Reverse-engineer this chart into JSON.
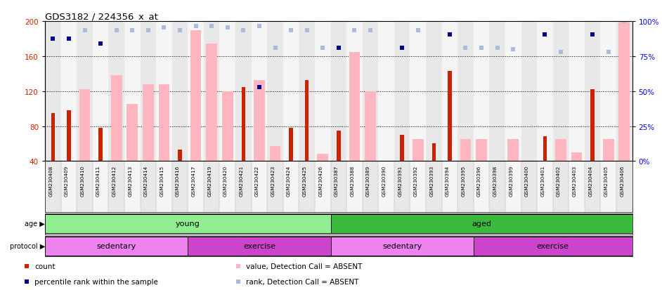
{
  "title": "GDS3182 / 224356_x_at",
  "samples": [
    "GSM230408",
    "GSM230409",
    "GSM230410",
    "GSM230411",
    "GSM230412",
    "GSM230413",
    "GSM230414",
    "GSM230415",
    "GSM230416",
    "GSM230417",
    "GSM230419",
    "GSM230420",
    "GSM230421",
    "GSM230422",
    "GSM230423",
    "GSM230424",
    "GSM230425",
    "GSM230426",
    "GSM230387",
    "GSM230388",
    "GSM230389",
    "GSM230390",
    "GSM230391",
    "GSM230392",
    "GSM230393",
    "GSM230394",
    "GSM230395",
    "GSM230396",
    "GSM230398",
    "GSM230399",
    "GSM230400",
    "GSM230401",
    "GSM230402",
    "GSM230403",
    "GSM230404",
    "GSM230405",
    "GSM230406"
  ],
  "red_bars": [
    95,
    98,
    null,
    78,
    null,
    null,
    null,
    null,
    53,
    null,
    null,
    null,
    125,
    null,
    null,
    78,
    133,
    null,
    75,
    null,
    null,
    null,
    70,
    null,
    60,
    143,
    null,
    null,
    null,
    null,
    null,
    68,
    null,
    null,
    122,
    null,
    null
  ],
  "pink_bars": [
    null,
    null,
    122,
    null,
    138,
    105,
    128,
    128,
    null,
    190,
    175,
    120,
    null,
    133,
    57,
    null,
    null,
    48,
    null,
    165,
    120,
    null,
    null,
    65,
    null,
    null,
    65,
    65,
    null,
    65,
    null,
    null,
    65,
    50,
    null,
    65,
    200
  ],
  "blue_squares": [
    180,
    180,
    null,
    175,
    null,
    null,
    null,
    null,
    null,
    null,
    null,
    null,
    null,
    125,
    null,
    null,
    null,
    null,
    170,
    null,
    null,
    null,
    170,
    null,
    null,
    185,
    null,
    null,
    null,
    null,
    null,
    185,
    null,
    null,
    185,
    null,
    null
  ],
  "light_blue_squares": [
    null,
    null,
    190,
    null,
    190,
    190,
    190,
    193,
    190,
    195,
    195,
    193,
    190,
    195,
    170,
    190,
    190,
    170,
    null,
    190,
    190,
    null,
    null,
    190,
    null,
    null,
    170,
    170,
    170,
    168,
    null,
    null,
    165,
    null,
    null,
    165,
    200
  ],
  "ylim": [
    40,
    200
  ],
  "yticks_left": [
    40,
    80,
    120,
    160,
    200
  ],
  "yticks_right": [
    0,
    25,
    50,
    75,
    100
  ],
  "age_groups": [
    {
      "label": "young",
      "start": 0,
      "end": 18,
      "color": "#90EE90"
    },
    {
      "label": "aged",
      "start": 18,
      "end": 37,
      "color": "#3CB83C"
    }
  ],
  "protocol_groups": [
    {
      "label": "sedentary",
      "start": 0,
      "end": 9,
      "color": "#EE82EE"
    },
    {
      "label": "exercise",
      "start": 9,
      "end": 18,
      "color": "#CC44CC"
    },
    {
      "label": "sedentary",
      "start": 18,
      "end": 27,
      "color": "#EE82EE"
    },
    {
      "label": "exercise",
      "start": 27,
      "end": 37,
      "color": "#CC44CC"
    }
  ],
  "red_color": "#CC2200",
  "pink_color": "#FFB6C1",
  "blue_color": "#00008B",
  "light_blue_color": "#AABBDD",
  "col_bg_odd": "#E8E8E8",
  "col_bg_even": "#F5F5F5",
  "legend": [
    {
      "label": "count",
      "color": "#CC2200",
      "col": 0,
      "row": 0
    },
    {
      "label": "percentile rank within the sample",
      "color": "#00008B",
      "col": 0,
      "row": 1
    },
    {
      "label": "value, Detection Call = ABSENT",
      "color": "#FFB6C1",
      "col": 1,
      "row": 0
    },
    {
      "label": "rank, Detection Call = ABSENT",
      "color": "#AABBDD",
      "col": 1,
      "row": 1
    }
  ]
}
